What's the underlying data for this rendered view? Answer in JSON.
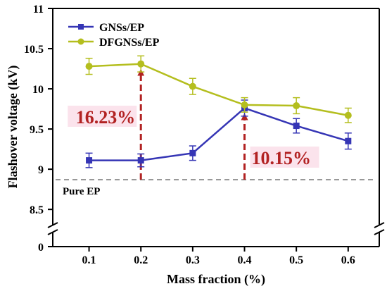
{
  "chart_data": {
    "type": "line",
    "xlabel": "Mass fraction (%)",
    "ylabel": "Flashover voltage (kV)",
    "x": [
      0.1,
      0.2,
      0.3,
      0.4,
      0.5,
      0.6
    ],
    "x_ticks": [
      "0.1",
      "0.2",
      "0.3",
      "0.4",
      "0.5",
      "0.6"
    ],
    "y_ticks": [
      "8.5",
      "9",
      "9.5",
      "10",
      "10.5",
      "11"
    ],
    "y_break_tick": "0",
    "ylim": [
      8.3,
      11
    ],
    "xlim": [
      0.03,
      0.66
    ],
    "legend_position": "top-left",
    "series": [
      {
        "name": "GNSs/EP",
        "color": "#3535b5",
        "marker": "square",
        "values": [
          9.11,
          9.11,
          9.2,
          9.76,
          9.54,
          9.35
        ],
        "errors": [
          0.09,
          0.08,
          0.09,
          0.1,
          0.09,
          0.1
        ]
      },
      {
        "name": "DFGNSs/EP",
        "color": "#b4be1e",
        "marker": "circle",
        "values": [
          10.28,
          10.31,
          10.03,
          9.8,
          9.79,
          9.67
        ],
        "errors": [
          0.1,
          0.1,
          0.1,
          0.09,
          0.1,
          0.09
        ]
      }
    ],
    "reference_line": {
      "label": "Pure EP",
      "value": 8.87,
      "color": "#777777"
    },
    "annotations": [
      {
        "text": "16.23%",
        "x": 0.2,
        "from": 8.87,
        "to": 10.31,
        "color": "#b22222"
      },
      {
        "text": "10.15%",
        "x": 0.4,
        "from": 8.87,
        "to": 9.76,
        "color": "#b22222"
      }
    ],
    "grid": false
  }
}
